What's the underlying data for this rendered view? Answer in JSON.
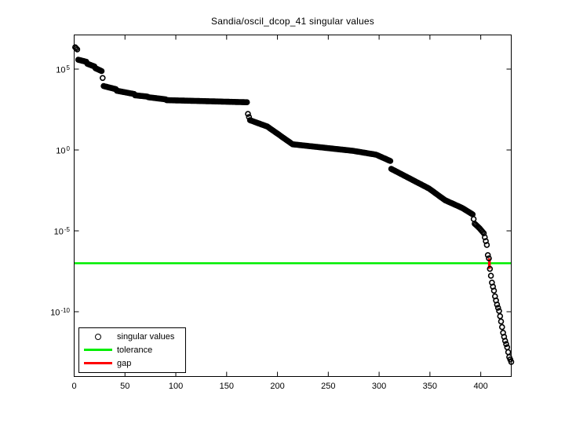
{
  "chart_data": {
    "type": "scatter",
    "title": "Sandia/oscil_dcop_41 singular values",
    "xlabel": "",
    "ylabel": "",
    "grid": false,
    "x_axis": {
      "min": 0,
      "max": 430,
      "ticks": [
        0,
        50,
        100,
        150,
        200,
        250,
        300,
        350,
        400
      ],
      "tick_labels": [
        "0",
        "50",
        "100",
        "150",
        "200",
        "250",
        "300",
        "350",
        "400"
      ]
    },
    "y_axis": {
      "scale": "log10",
      "tick_exponents": [
        5,
        0,
        -5,
        -10
      ],
      "tick_labels": [
        "10^5",
        "10^0",
        "10^-5",
        "10^-10"
      ],
      "min_log10": -13.9,
      "max_log10": 7.1
    },
    "n_points": 430,
    "singular_values_profile_log10": [
      [
        1,
        6.35
      ],
      [
        3,
        6.22
      ],
      [
        4,
        5.58
      ],
      [
        12,
        5.45
      ],
      [
        13,
        5.33
      ],
      [
        20,
        5.16
      ],
      [
        21,
        5.05
      ],
      [
        27,
        4.88
      ],
      [
        28,
        4.45
      ],
      [
        29,
        3.95
      ],
      [
        41,
        3.76
      ],
      [
        42,
        3.66
      ],
      [
        59,
        3.46
      ],
      [
        60,
        3.38
      ],
      [
        72,
        3.3
      ],
      [
        73,
        3.26
      ],
      [
        90,
        3.13
      ],
      [
        91,
        3.08
      ],
      [
        170,
        2.95
      ],
      [
        171,
        2.23
      ],
      [
        173,
        1.84
      ],
      [
        190,
        1.45
      ],
      [
        214,
        0.39
      ],
      [
        215,
        0.35
      ],
      [
        274,
        -0.05
      ],
      [
        297,
        -0.29
      ],
      [
        311,
        -0.68
      ],
      [
        312,
        -1.17
      ],
      [
        334,
        -1.89
      ],
      [
        349,
        -2.38
      ],
      [
        365,
        -3.11
      ],
      [
        382,
        -3.59
      ],
      [
        392,
        -3.98
      ],
      [
        394,
        -4.56
      ],
      [
        399,
        -4.85
      ],
      [
        403,
        -5.15
      ],
      [
        404,
        -5.4
      ],
      [
        406,
        -5.87
      ],
      [
        407,
        -6.5
      ],
      [
        408,
        -6.7
      ],
      [
        409,
        -7.35
      ],
      [
        411,
        -8.2
      ],
      [
        413,
        -8.7
      ],
      [
        414,
        -9.05
      ],
      [
        416,
        -9.56
      ],
      [
        418,
        -9.95
      ],
      [
        420,
        -10.6
      ],
      [
        422,
        -11.3
      ],
      [
        424,
        -11.8
      ],
      [
        426,
        -12.2
      ],
      [
        428,
        -12.8
      ],
      [
        430,
        -13.1
      ]
    ],
    "tolerance_log10": -7.0,
    "gap": {
      "x_index": 408.5,
      "log10_from": -6.7,
      "log10_to": -7.35
    },
    "legend": {
      "position": "south-west",
      "items": [
        {
          "marker": "circle",
          "color": "#000000",
          "label": "singular values"
        },
        {
          "marker": "line",
          "color": "#00ee00",
          "label": "tolerance"
        },
        {
          "marker": "line",
          "color": "#ff0000",
          "label": "gap"
        }
      ]
    },
    "colors": {
      "singular_values": "#000000",
      "tolerance": "#00ee00",
      "gap": "#ff0000",
      "axis": "#000000",
      "background": "#ffffff"
    }
  }
}
